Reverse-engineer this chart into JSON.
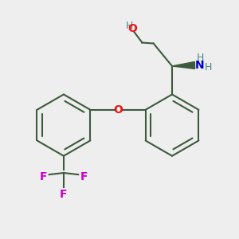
{
  "bg_color": "#eeeeee",
  "bond_color": "#3d5a3d",
  "O_color": "#ee1111",
  "N_color": "#0000cc",
  "F_color": "#cc00cc",
  "H_color": "#4a8888",
  "lw": 1.5,
  "dbo": 0.032,
  "ring_r": 0.19,
  "xlim": [
    -0.52,
    0.95
  ],
  "ylim": [
    -0.18,
    1.05
  ]
}
